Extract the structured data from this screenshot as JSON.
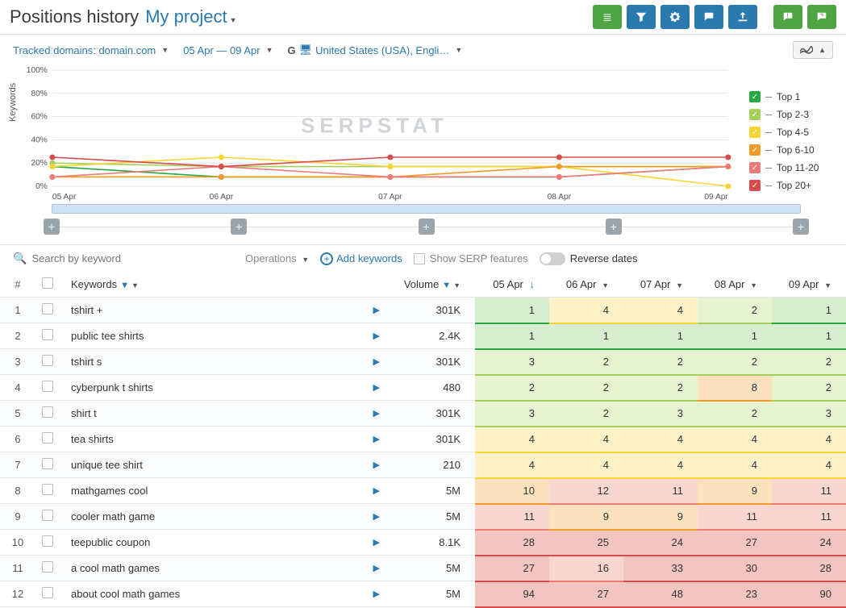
{
  "header": {
    "title": "Positions history",
    "project": "My project"
  },
  "filters": {
    "tracked_label": "Tracked domains: domain.com",
    "date_range": "05 Apr — 09 Apr",
    "region": "United States (USA), Engli…"
  },
  "chart": {
    "ylabel": "Keywords",
    "ymax": 100,
    "ytick_step": 20,
    "grid_color": "#e5e5e5",
    "axis_color": "#888",
    "watermark": "SERPSTAT",
    "dates": [
      "05 Apr",
      "06 Apr",
      "07 Apr",
      "08 Apr",
      "09 Apr"
    ],
    "series": [
      {
        "name": "Top 1",
        "color": "#27a842",
        "values": [
          17,
          8,
          8,
          8,
          17
        ]
      },
      {
        "name": "Top 2-3",
        "color": "#a6ce5b",
        "values": [
          20,
          17,
          17,
          17,
          17
        ]
      },
      {
        "name": "Top 4-5",
        "color": "#f6d432",
        "values": [
          17,
          25,
          17,
          17,
          0
        ]
      },
      {
        "name": "Top 6-10",
        "color": "#f09a2a",
        "values": [
          8,
          8,
          8,
          17,
          17
        ]
      },
      {
        "name": "Top 11-20",
        "color": "#ef7a7a",
        "values": [
          8,
          17,
          8,
          8,
          17
        ]
      },
      {
        "name": "Top 20+",
        "color": "#d84b4b",
        "values": [
          25,
          17,
          25,
          25,
          25
        ]
      }
    ]
  },
  "toolbar": {
    "search_placeholder": "Search by keyword",
    "operations": "Operations",
    "add_keywords": "Add keywords",
    "show_serp": "Show SERP features",
    "reverse_dates": "Reverse dates"
  },
  "table": {
    "columns": {
      "idx": "#",
      "keywords": "Keywords",
      "volume": "Volume",
      "dates": [
        "05 Apr",
        "06 Apr",
        "07 Apr",
        "08 Apr",
        "09 Apr"
      ]
    },
    "tier_colors": {
      "t1": {
        "bg": "#d7efce",
        "border": "#27a842"
      },
      "t2": {
        "bg": "#e7f2d1",
        "border": "#a6ce5b"
      },
      "t4": {
        "bg": "#fdf2c7",
        "border": "#f6d432"
      },
      "t6": {
        "bg": "#fbe1bd",
        "border": "#f09a2a"
      },
      "t11": {
        "bg": "#f9d6cf",
        "border": "#ef7a7a"
      },
      "t20": {
        "bg": "#f3c5c1",
        "border": "#d84b4b"
      }
    },
    "rows": [
      {
        "kw": "tshirt +",
        "vol": "301K",
        "pos": [
          1,
          4,
          4,
          2,
          1
        ]
      },
      {
        "kw": "public tee shirts",
        "vol": "2.4K",
        "pos": [
          1,
          1,
          1,
          1,
          1
        ]
      },
      {
        "kw": "tshirt s",
        "vol": "301K",
        "pos": [
          3,
          2,
          2,
          2,
          2
        ]
      },
      {
        "kw": "cyberpunk t shirts",
        "vol": "480",
        "pos": [
          2,
          2,
          2,
          8,
          2
        ]
      },
      {
        "kw": "shirt t",
        "vol": "301K",
        "pos": [
          3,
          2,
          3,
          2,
          3
        ]
      },
      {
        "kw": "tea shirts",
        "vol": "301K",
        "pos": [
          4,
          4,
          4,
          4,
          4
        ]
      },
      {
        "kw": "unique tee shirt",
        "vol": "210",
        "pos": [
          4,
          4,
          4,
          4,
          4
        ]
      },
      {
        "kw": "mathgames cool",
        "vol": "5M",
        "pos": [
          10,
          12,
          11,
          9,
          11
        ]
      },
      {
        "kw": "cooler math game",
        "vol": "5M",
        "pos": [
          11,
          9,
          9,
          11,
          11
        ]
      },
      {
        "kw": "teepublic coupon",
        "vol": "8.1K",
        "pos": [
          28,
          25,
          24,
          27,
          24
        ]
      },
      {
        "kw": "a cool math games",
        "vol": "5M",
        "pos": [
          27,
          16,
          33,
          30,
          28
        ]
      },
      {
        "kw": "about cool math games",
        "vol": "5M",
        "pos": [
          94,
          27,
          48,
          23,
          90
        ]
      }
    ]
  }
}
